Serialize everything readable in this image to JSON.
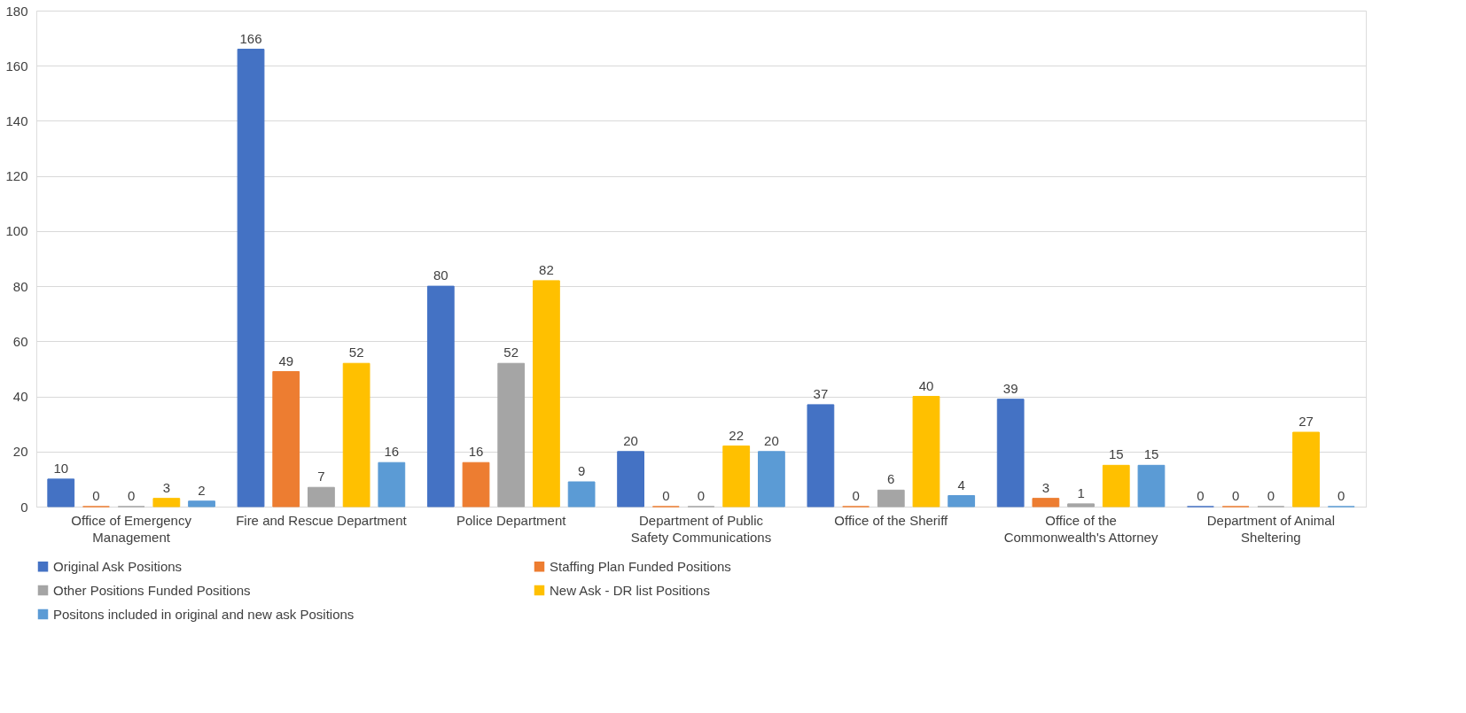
{
  "chart_data": {
    "type": "bar",
    "categories": [
      "Office of Emergency Management",
      "Fire and Rescue Department",
      "Police Department",
      "Department of Public Safety Communications",
      "Office of the Sheriff",
      "Office of the Commonwealth's Attorney",
      "Department of Animal Sheltering"
    ],
    "series": [
      {
        "name": "Original Ask  Positions",
        "color": "#4472c4",
        "values": [
          10,
          166,
          80,
          20,
          37,
          39,
          0
        ]
      },
      {
        "name": "Staffing Plan Funded Positions",
        "color": "#ed7d31",
        "values": [
          0,
          49,
          16,
          0,
          0,
          3,
          0
        ]
      },
      {
        "name": "Other Positions Funded Positions",
        "color": "#a5a5a5",
        "values": [
          0,
          7,
          52,
          0,
          6,
          1,
          0
        ]
      },
      {
        "name": "New Ask - DR list Positions",
        "color": "#ffc000",
        "values": [
          3,
          52,
          82,
          22,
          40,
          15,
          27
        ]
      },
      {
        "name": "Positons included in original and new ask Positions",
        "color": "#5b9bd5",
        "values": [
          2,
          16,
          9,
          20,
          4,
          15,
          0
        ]
      }
    ],
    "ylim": [
      0,
      180
    ],
    "yticks": [
      0,
      20,
      40,
      60,
      80,
      100,
      120,
      140,
      160,
      180
    ],
    "grid": "y",
    "legend": "bottom",
    "data_labels": true
  }
}
